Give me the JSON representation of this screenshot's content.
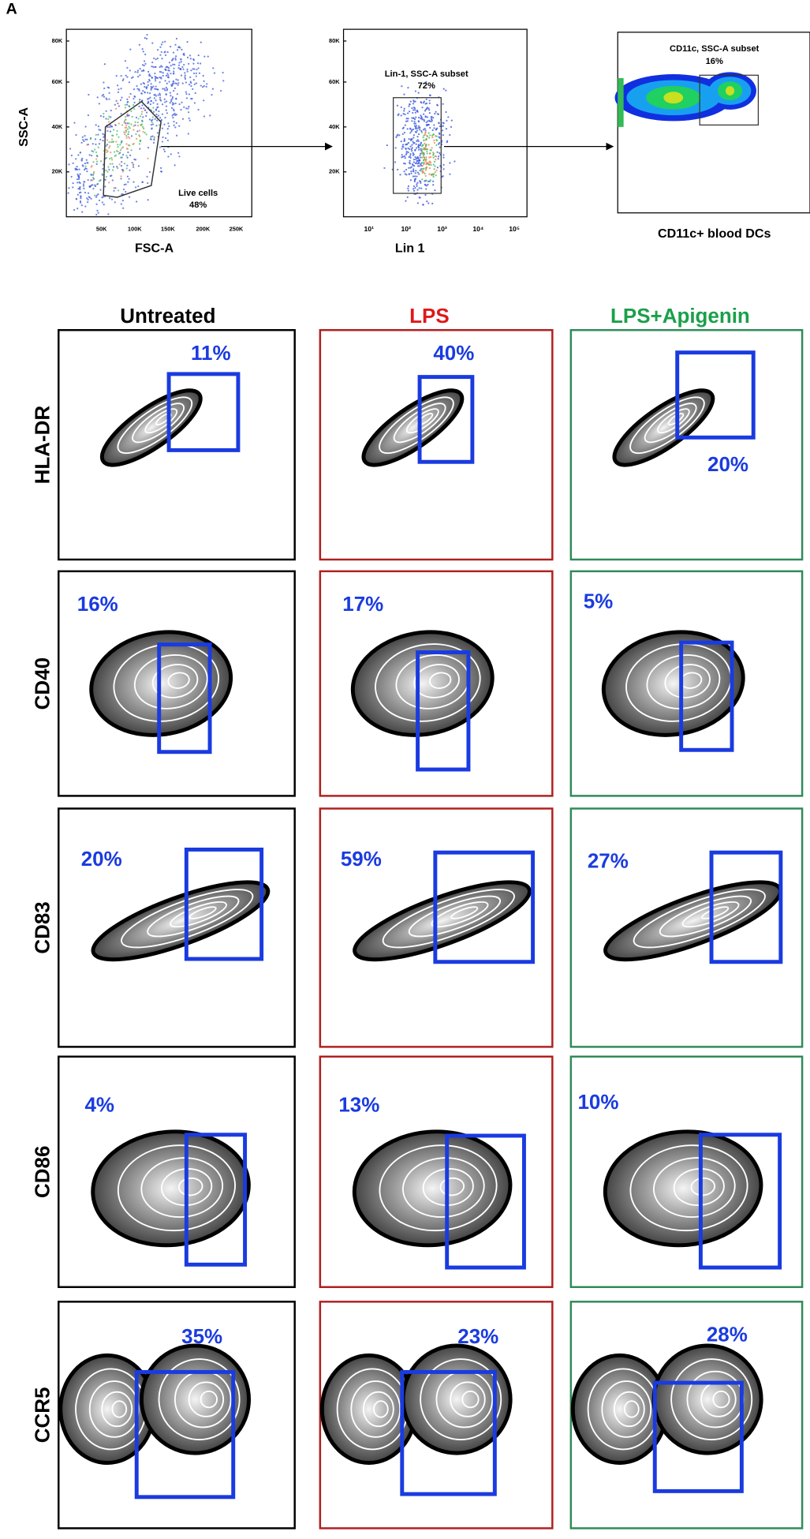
{
  "figure_label": "A",
  "gating": [
    {
      "x_label": "FSC-A",
      "y_label": "SSC-A",
      "gate_name": "Live cells",
      "gate_percent": "48%",
      "yticks": [
        "80K",
        "60K",
        "40K",
        "20K"
      ],
      "xticks": [
        "50K",
        "100K",
        "150K",
        "200K",
        "250K"
      ]
    },
    {
      "x_label": "Lin 1",
      "gate_name": "Lin-1, SSC-A subset",
      "gate_percent": "72%",
      "yticks": [
        "80K",
        "60K",
        "40K",
        "20K"
      ],
      "xticks": [
        "10¹",
        "10²",
        "10³",
        "10⁴",
        "10⁵"
      ]
    },
    {
      "caption": "CD11c+ blood DCs",
      "gate_name": "CD11c, SSC-A subset",
      "gate_percent": "16%"
    }
  ],
  "columns": [
    "Untreated",
    "LPS",
    "LPS+Apigenin"
  ],
  "rows": [
    {
      "marker": "HLA-DR",
      "percents": [
        "11%",
        "40%",
        "20%"
      ]
    },
    {
      "marker": "CD40",
      "percents": [
        "16%",
        "17%",
        "5%"
      ]
    },
    {
      "marker": "CD83",
      "percents": [
        "20%",
        "59%",
        "27%"
      ]
    },
    {
      "marker": "CD86",
      "percents": [
        "4%",
        "13%",
        "10%"
      ]
    },
    {
      "marker": "CCR5",
      "percents": [
        "35%",
        "23%",
        "28%"
      ]
    }
  ]
}
